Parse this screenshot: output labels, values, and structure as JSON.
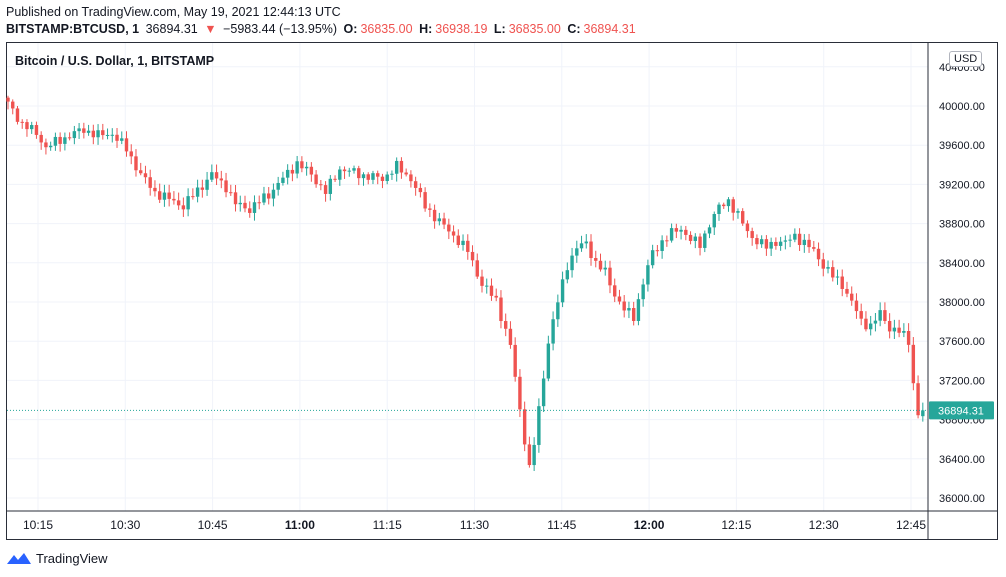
{
  "header": {
    "published": "Published on TradingView.com, May 19, 2021 12:44:13 UTC",
    "symbol": "BITSTAMP:BTCUSD, 1",
    "last": "36894.31",
    "arrow": "▼",
    "change": "−5983.44 (−13.95%)",
    "o_label": "O:",
    "o_value": "36835.00",
    "h_label": "H:",
    "h_value": "36938.19",
    "l_label": "L:",
    "l_value": "36835.00",
    "c_label": "C:",
    "c_value": "36894.31"
  },
  "chart_title": "Bitcoin / U.S. Dollar, 1, BITSTAMP",
  "currency": "USD",
  "footer": {
    "brand": "TradingView"
  },
  "colors": {
    "up": "#26a69a",
    "down": "#ef5350",
    "last_price_bg": "#26a69a",
    "grid": "#f0f3fa",
    "axis_text": "#131722"
  },
  "chart_data": {
    "type": "candlestick",
    "symbol": "BTCUSD",
    "interval": "1m",
    "ylim": [
      35800,
      40400
    ],
    "yticks": [
      36000,
      36400,
      36800,
      37200,
      37600,
      38000,
      38400,
      38800,
      39200,
      39600,
      40000,
      40400
    ],
    "ytick_labels": [
      "36000.00",
      "36400.00",
      "36800.00",
      "37200.00",
      "37600.00",
      "38000.00",
      "38400.00",
      "38800.00",
      "39200.00",
      "39600.00",
      "40000.00",
      "40400.00"
    ],
    "xticks": [
      {
        "label": "10:15",
        "bold": false
      },
      {
        "label": "10:30",
        "bold": false
      },
      {
        "label": "10:45",
        "bold": false
      },
      {
        "label": "11:00",
        "bold": true
      },
      {
        "label": "11:15",
        "bold": false
      },
      {
        "label": "11:30",
        "bold": false
      },
      {
        "label": "11:45",
        "bold": false
      },
      {
        "label": "12:00",
        "bold": true
      },
      {
        "label": "12:15",
        "bold": false
      },
      {
        "label": "12:30",
        "bold": false
      },
      {
        "label": "12:45",
        "bold": false
      }
    ],
    "start_time": "10:10",
    "last_price": 36894.31,
    "last_price_label": "36894.31",
    "close_keypoints": [
      [
        0,
        40020
      ],
      [
        3,
        39820
      ],
      [
        6,
        39720
      ],
      [
        8,
        39580
      ],
      [
        13,
        39700
      ],
      [
        16,
        39760
      ],
      [
        19,
        39700
      ],
      [
        22,
        39720
      ],
      [
        25,
        39560
      ],
      [
        28,
        39300
      ],
      [
        31,
        39120
      ],
      [
        34,
        39050
      ],
      [
        37,
        38980
      ],
      [
        40,
        39140
      ],
      [
        43,
        39300
      ],
      [
        46,
        39180
      ],
      [
        48,
        39000
      ],
      [
        51,
        38950
      ],
      [
        55,
        39100
      ],
      [
        58,
        39260
      ],
      [
        61,
        39420
      ],
      [
        64,
        39300
      ],
      [
        67,
        39120
      ],
      [
        70,
        39360
      ],
      [
        73,
        39320
      ],
      [
        76,
        39280
      ],
      [
        79,
        39260
      ],
      [
        82,
        39380
      ],
      [
        85,
        39260
      ],
      [
        88,
        38980
      ],
      [
        91,
        38820
      ],
      [
        94,
        38680
      ],
      [
        97,
        38520
      ],
      [
        100,
        38180
      ],
      [
        103,
        38020
      ],
      [
        106,
        37550
      ],
      [
        108,
        36900
      ],
      [
        110,
        36300
      ],
      [
        111,
        36550
      ],
      [
        112,
        36900
      ],
      [
        114,
        37600
      ],
      [
        116,
        38000
      ],
      [
        118,
        38380
      ],
      [
        120,
        38550
      ],
      [
        122,
        38600
      ],
      [
        124,
        38400
      ],
      [
        126,
        38300
      ],
      [
        128,
        38080
      ],
      [
        130,
        37920
      ],
      [
        132,
        37850
      ],
      [
        134,
        38200
      ],
      [
        136,
        38500
      ],
      [
        138,
        38620
      ],
      [
        140,
        38700
      ],
      [
        142,
        38750
      ],
      [
        144,
        38640
      ],
      [
        146,
        38580
      ],
      [
        148,
        38800
      ],
      [
        150,
        38960
      ],
      [
        152,
        39040
      ],
      [
        154,
        38880
      ],
      [
        156,
        38720
      ],
      [
        158,
        38620
      ],
      [
        160,
        38560
      ],
      [
        162,
        38620
      ],
      [
        164,
        38600
      ],
      [
        166,
        38680
      ],
      [
        168,
        38600
      ],
      [
        170,
        38520
      ],
      [
        172,
        38380
      ],
      [
        174,
        38260
      ],
      [
        176,
        38180
      ],
      [
        178,
        38000
      ],
      [
        180,
        37800
      ],
      [
        182,
        37760
      ],
      [
        184,
        37880
      ],
      [
        186,
        37740
      ],
      [
        188,
        37700
      ],
      [
        190,
        37600
      ],
      [
        191,
        37180
      ],
      [
        192,
        36850
      ],
      [
        193,
        36894.31
      ]
    ]
  }
}
